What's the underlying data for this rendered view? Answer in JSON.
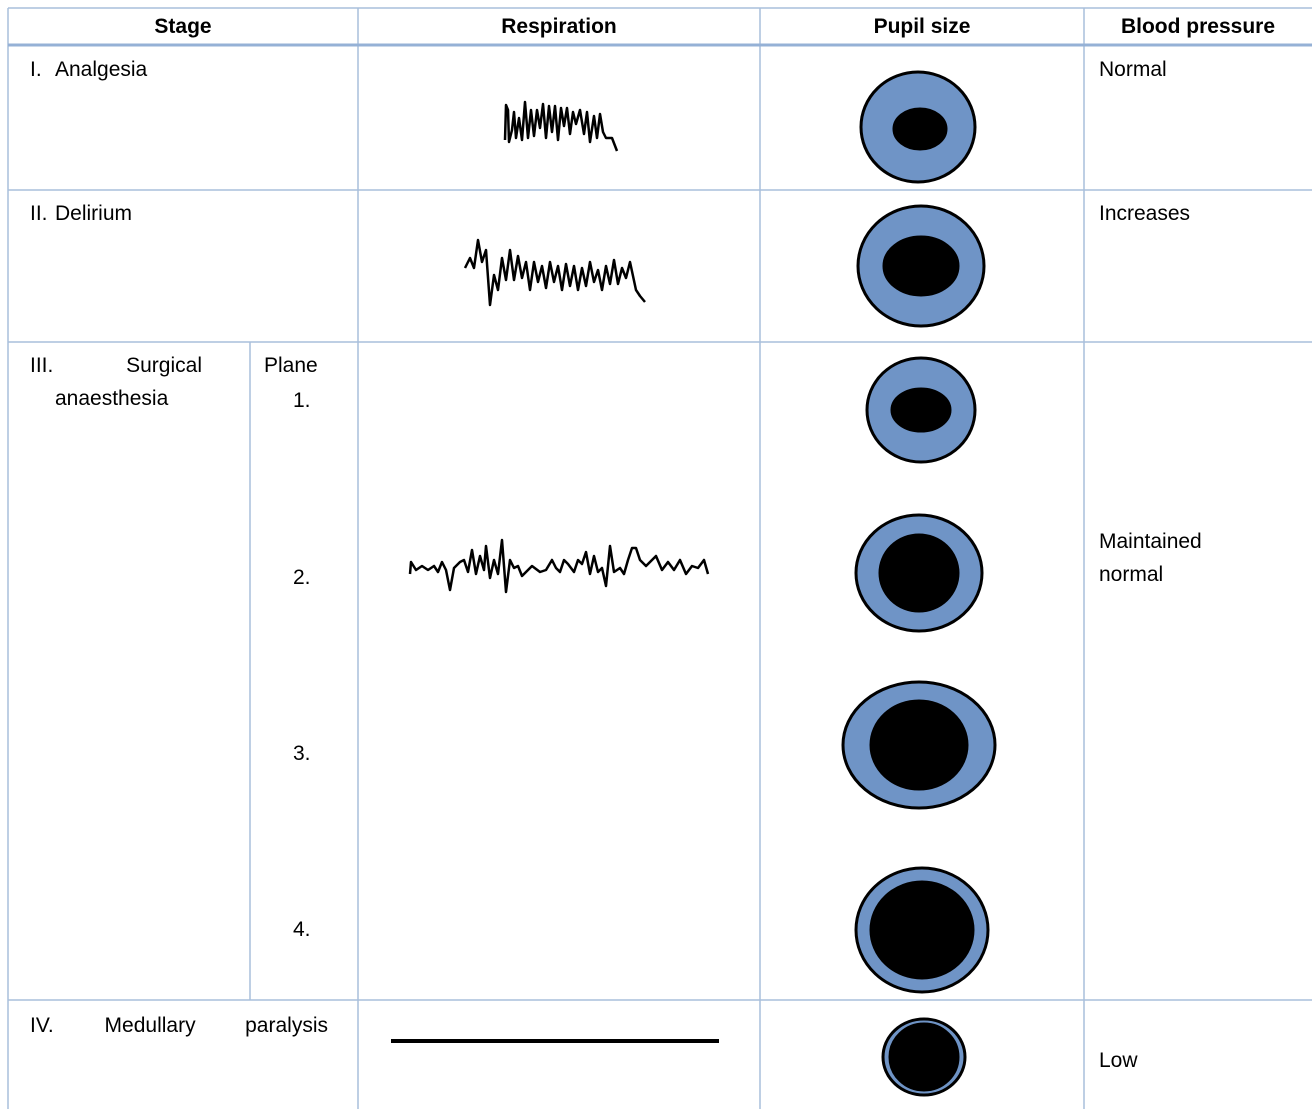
{
  "table": {
    "header": [
      "Stage",
      "Respiration",
      "Pupil size",
      "Blood pressure"
    ],
    "rows": [
      {
        "stage_number": "I.",
        "stage_name": "Analgesia",
        "blood_pressure": "Normal"
      },
      {
        "stage_number": "II.",
        "stage_name": "Delirium",
        "blood_pressure": "Increases"
      },
      {
        "stage_number": "III.",
        "stage_name": "Surgical anaesthesia",
        "plane_heading": "Plane",
        "planes": [
          "1.",
          "2.",
          "3.",
          "4."
        ],
        "blood_pressure": "Maintained normal"
      },
      {
        "stage_number": "IV.",
        "stage_name": "Medullary paralysis",
        "blood_pressure": "Low"
      }
    ]
  }
}
